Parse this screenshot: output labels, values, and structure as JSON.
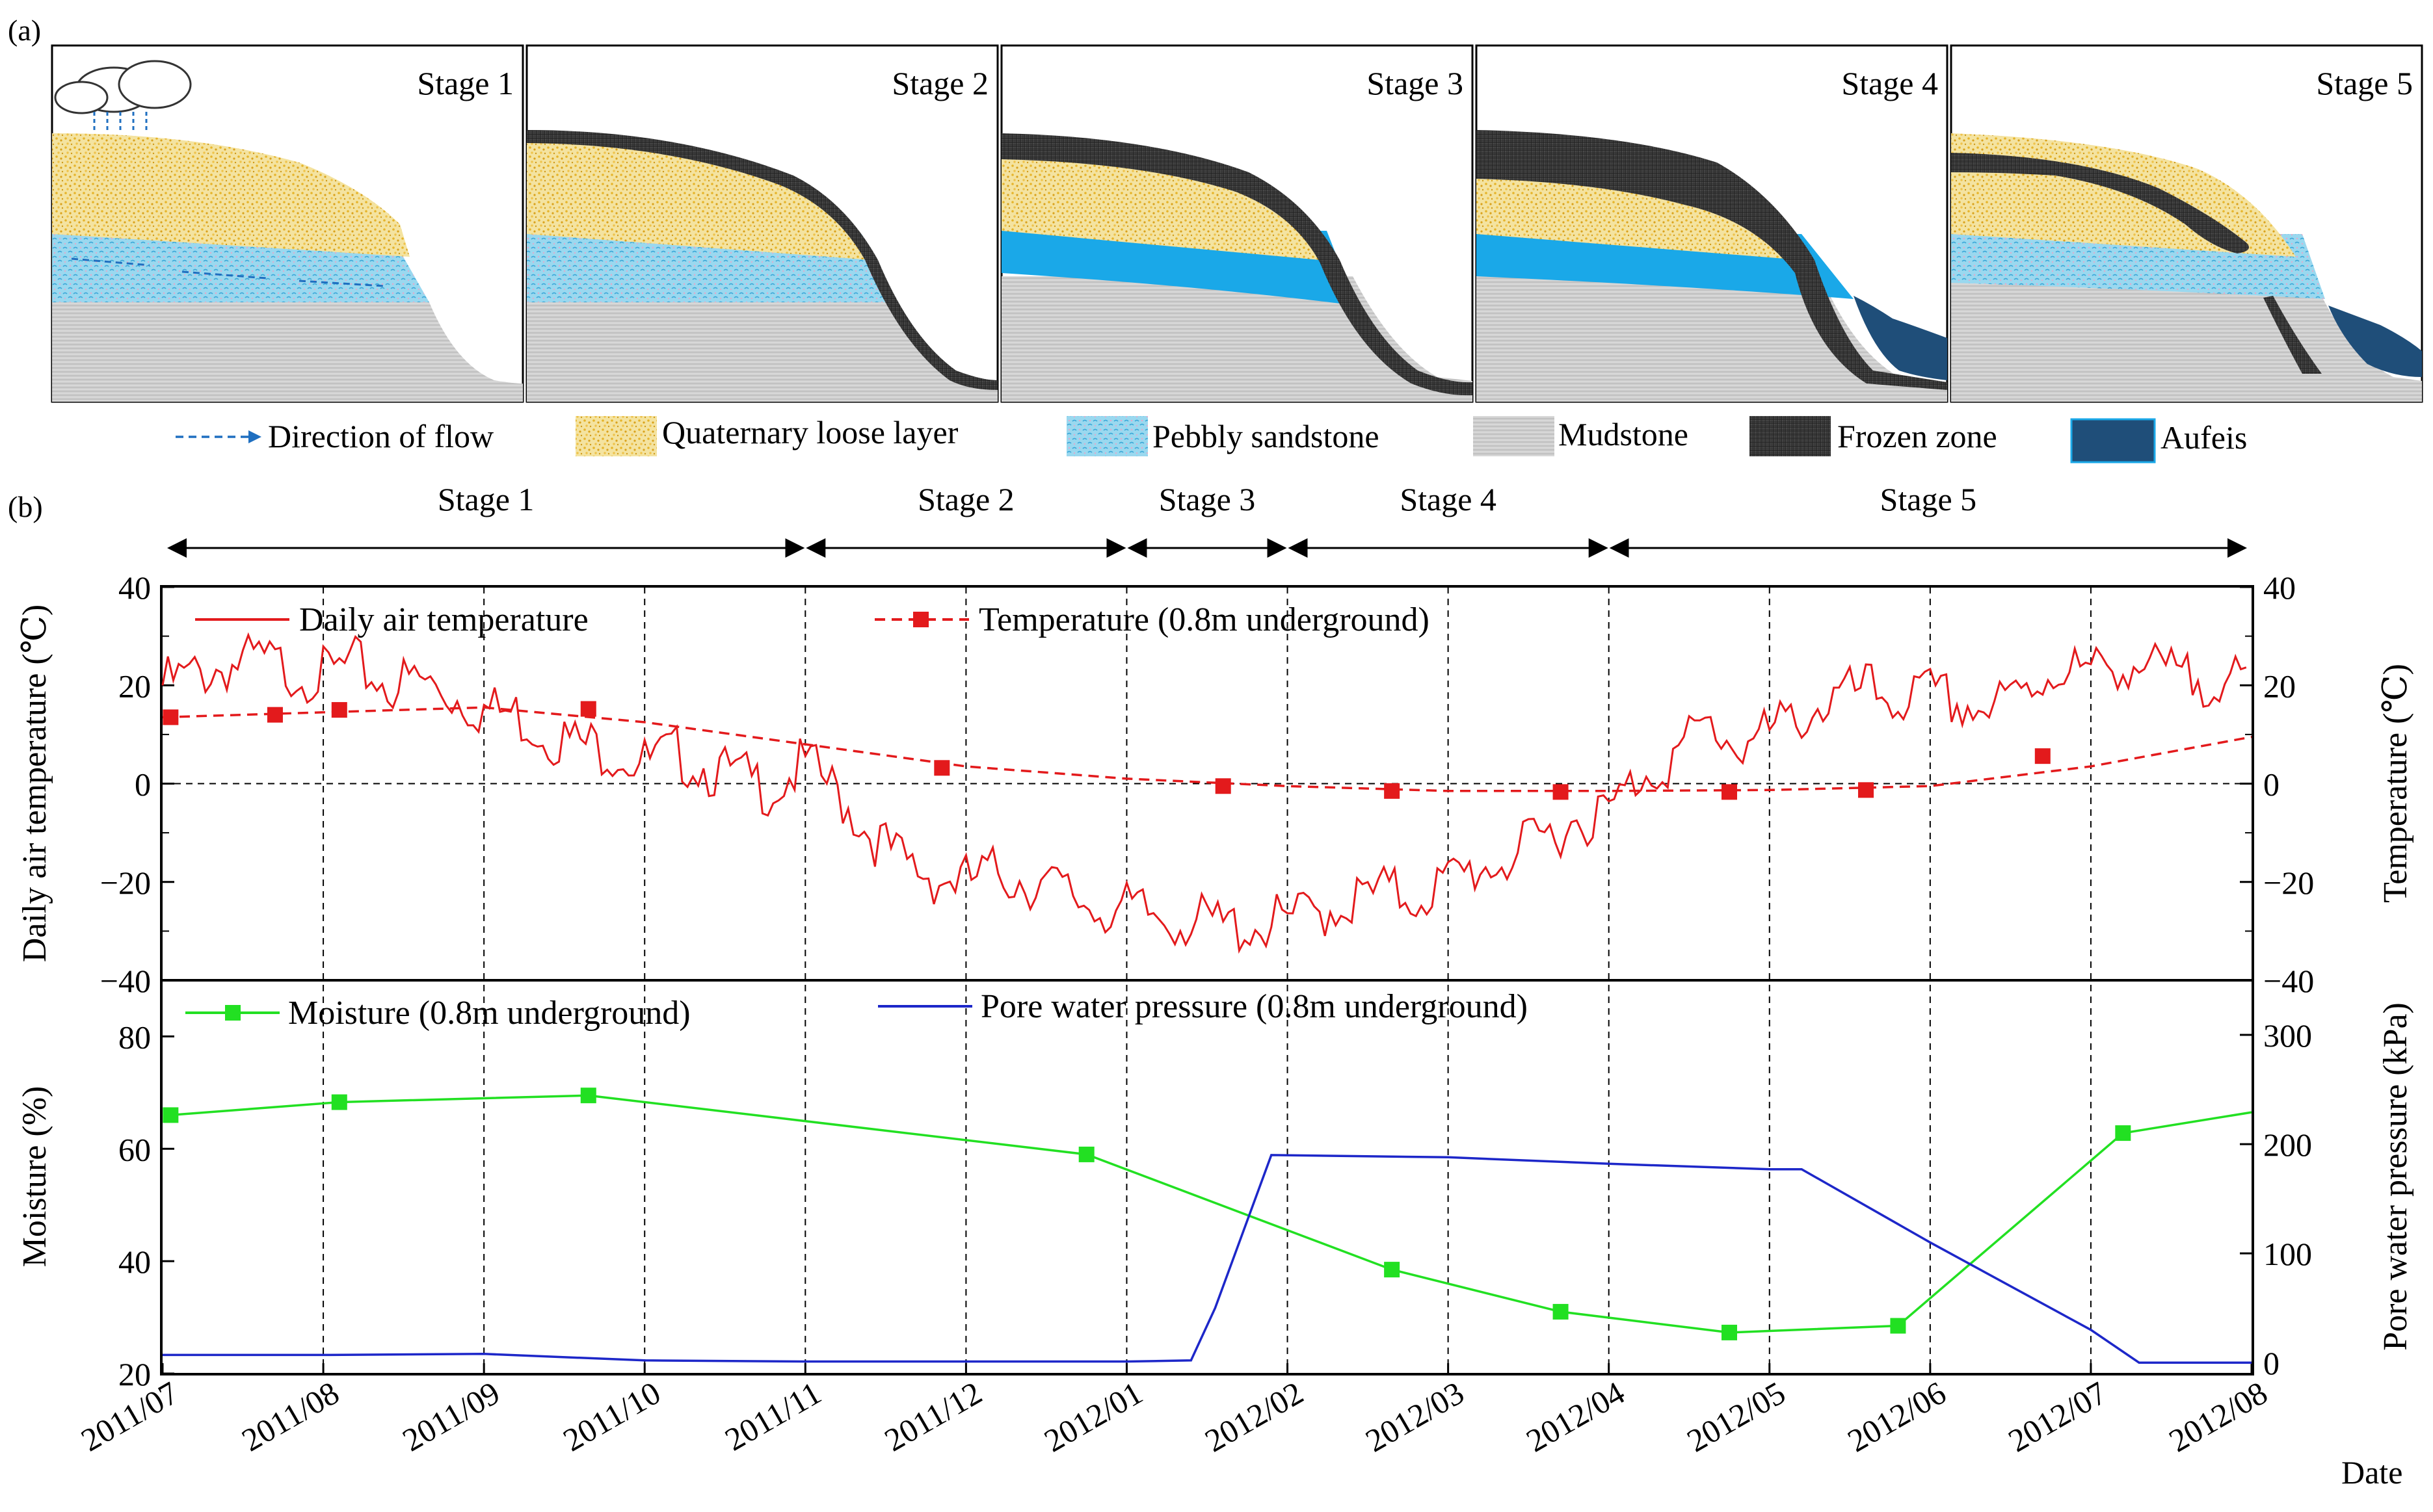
{
  "panel_a": {
    "label": "(a)",
    "stages": [
      "Stage 1",
      "Stage 2",
      "Stage 3",
      "Stage 4",
      "Stage 5"
    ],
    "legend": [
      {
        "key": "flow",
        "label": "Direction of flow"
      },
      {
        "key": "quaternary",
        "label": "Quaternary loose layer"
      },
      {
        "key": "pebbly",
        "label": "Pebbly sandstone"
      },
      {
        "key": "mudstone",
        "label": "Mudstone"
      },
      {
        "key": "frozen",
        "label": "Frozen zone"
      },
      {
        "key": "aufeis",
        "label": "Aufeis"
      }
    ],
    "icons": [
      "rain-cloud-icon",
      "flow-arrow-icon"
    ],
    "colors": {
      "quaternary": "#f2dc8a",
      "quaternary_dots": "#e8b830",
      "pebbly": "#8fd3ea",
      "pebbly_stroke": "#3aa8d8",
      "saturated": "#1aa5e6",
      "mudstone": "#c8c8c8",
      "frozen": "#3a3a3a",
      "aufeis": "#1f4e79",
      "flow_arrow": "#1f6fc0"
    }
  },
  "panel_b": {
    "label": "(b)",
    "stages": [
      {
        "label": "Stage 1",
        "start": "2011/07",
        "end": "2011/11"
      },
      {
        "label": "Stage 2",
        "start": "2011/11",
        "end": "2012/01"
      },
      {
        "label": "Stage 3",
        "start": "2012/01",
        "end": "2012/02"
      },
      {
        "label": "Stage 4",
        "start": "2012/02",
        "end": "2012/04"
      },
      {
        "label": "Stage 5",
        "start": "2012/04",
        "end": "2012/08"
      }
    ],
    "x_label": "Date"
  },
  "chart_data": [
    {
      "type": "line",
      "title": "",
      "x_tick_labels": [
        "2011/07",
        "2011/08",
        "2011/09",
        "2011/10",
        "2011/11",
        "2011/12",
        "2012/01",
        "2012/02",
        "2012/03",
        "2012/04",
        "2012/05",
        "2012/06",
        "2012/07",
        "2012/08"
      ],
      "x_unit": "months since 2011/07",
      "xlim": [
        0,
        13
      ],
      "ylabel": "Daily air temperature (℃)",
      "ylabel_right": "Temperature (℃)",
      "ylim": [
        -40,
        40
      ],
      "yticks": [
        -40,
        -20,
        0,
        20,
        40
      ],
      "series": [
        {
          "name": "Daily air temperature",
          "color": "#e31a1c",
          "style": "solid",
          "x": [
            0,
            0.2,
            0.4,
            0.6,
            0.8,
            1.0,
            1.2,
            1.4,
            1.6,
            1.8,
            2.0,
            2.2,
            2.4,
            2.6,
            2.8,
            3.0,
            3.2,
            3.4,
            3.6,
            3.8,
            4.0,
            4.2,
            4.4,
            4.6,
            4.8,
            5.0,
            5.2,
            5.4,
            5.6,
            5.8,
            6.0,
            6.2,
            6.4,
            6.6,
            6.8,
            7.0,
            7.2,
            7.4,
            7.6,
            7.8,
            8.0,
            8.2,
            8.4,
            8.6,
            8.8,
            9.0,
            9.2,
            9.4,
            9.6,
            9.8,
            10.0,
            10.2,
            10.4,
            10.6,
            10.8,
            11.0,
            11.2,
            11.4,
            11.6,
            11.8,
            12.0,
            12.2,
            12.4,
            12.6,
            12.8,
            13.0
          ],
          "values": [
            20,
            22,
            24,
            25,
            23,
            22,
            24,
            20,
            21,
            18,
            15,
            14,
            10,
            8,
            7,
            4,
            6,
            3,
            1,
            -1,
            4,
            -2,
            -10,
            -16,
            -19,
            -20,
            -18,
            -20,
            -22,
            -25,
            -26,
            -27,
            -28,
            -29,
            -29,
            -28,
            -26,
            -24,
            -22,
            -23,
            -20,
            -17,
            -15,
            -11,
            -7,
            -6,
            2,
            5,
            12,
            8,
            10,
            14,
            17,
            19,
            17,
            18,
            16,
            15,
            19,
            24,
            22,
            25,
            23,
            21,
            22,
            18
          ]
        },
        {
          "name": "Temperature (0.8m underground)",
          "color": "#e31a1c",
          "style": "dashed",
          "x": [
            0,
            1,
            2,
            3,
            4,
            5,
            6,
            7,
            8,
            9,
            10,
            11,
            12,
            13
          ],
          "values": [
            13.5,
            14.5,
            15.5,
            12.5,
            8,
            3.5,
            1,
            -0.5,
            -1.5,
            -1.5,
            -1.3,
            -0.5,
            3.5,
            9.5
          ],
          "markers_x": [
            0.05,
            0.7,
            1.1,
            2.65,
            4.85,
            6.6,
            7.65,
            8.7,
            9.75,
            10.6,
            11.7,
            13.0
          ],
          "markers_y": [
            13.5,
            14,
            15,
            15.2,
            3.2,
            -0.5,
            -1.5,
            -1.7,
            -1.7,
            -1.3,
            5.6,
            null
          ]
        }
      ]
    },
    {
      "type": "line",
      "title": "",
      "x_tick_labels": [
        "2011/07",
        "2011/08",
        "2011/09",
        "2011/10",
        "2011/11",
        "2011/12",
        "2012/01",
        "2012/02",
        "2012/03",
        "2012/04",
        "2012/05",
        "2012/06",
        "2012/07",
        "2012/08"
      ],
      "xlim": [
        0,
        13
      ],
      "ylabel": "Moisture (%)",
      "ylabel_right": "Pore water pressure (kPa)",
      "ylim": [
        20,
        90
      ],
      "yticks": [
        20,
        40,
        60,
        80
      ],
      "ylim_right": [
        -10,
        350
      ],
      "yticks_right": [
        0,
        100,
        200,
        300
      ],
      "series": [
        {
          "name": "Moisture (0.8m underground)",
          "color": "#22e022",
          "style": "solid",
          "axis": "left",
          "x": [
            0.05,
            1.1,
            2.65,
            5.75,
            7.65,
            8.7,
            9.75,
            10.8,
            12.2,
            13.0
          ],
          "values": [
            66,
            68.3,
            69.5,
            59,
            38.5,
            31,
            27.3,
            28.5,
            62.8,
            66.5
          ],
          "markers": [
            true,
            true,
            true,
            true,
            true,
            true,
            true,
            true,
            true,
            false
          ]
        },
        {
          "name": "Pore water pressure (0.8m underground)",
          "color": "#1d27c9",
          "style": "solid",
          "axis": "right",
          "x": [
            0,
            1,
            2,
            3,
            4,
            5,
            6,
            6.4,
            6.55,
            6.9,
            8,
            9,
            10,
            10.2,
            11,
            12,
            12.3,
            13
          ],
          "values": [
            7,
            7,
            8,
            2,
            1,
            1,
            1,
            2,
            50,
            190,
            188,
            182,
            177,
            177,
            110,
            30,
            0,
            0
          ]
        }
      ]
    }
  ]
}
